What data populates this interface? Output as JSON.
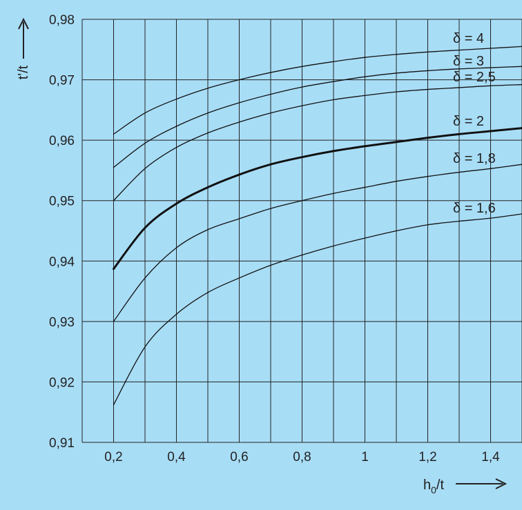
{
  "chart_data": {
    "type": "line",
    "xlabel": "h",
    "xlabel_sub": "0",
    "xlabel_suffix": "/t",
    "ylabel": "t'/t",
    "xlim": [
      0.1,
      1.5
    ],
    "ylim": [
      0.91,
      0.98
    ],
    "grid": true,
    "x_ticks": [
      0.2,
      0.4,
      0.6,
      0.8,
      1.0,
      1.2,
      1.4
    ],
    "x_tick_labels": [
      "0,2",
      "0,4",
      "0,6",
      "0,8",
      "1",
      "1,2",
      "1,4"
    ],
    "y_ticks": [
      0.91,
      0.92,
      0.93,
      0.94,
      0.95,
      0.96,
      0.97,
      0.98
    ],
    "y_tick_labels": [
      "0,91",
      "0,92",
      "0,93",
      "0,94",
      "0,95",
      "0,96",
      "0,97",
      "0,98"
    ],
    "x": [
      0.2,
      0.3,
      0.4,
      0.5,
      0.6,
      0.7,
      0.8,
      0.9,
      1.0,
      1.1,
      1.2,
      1.3,
      1.4,
      1.5
    ],
    "series": [
      {
        "name": "δ = 4",
        "bold": false,
        "values": [
          0.961,
          0.9645,
          0.9668,
          0.9686,
          0.97,
          0.9712,
          0.9722,
          0.973,
          0.9737,
          0.9742,
          0.9746,
          0.9749,
          0.9752,
          0.9755
        ]
      },
      {
        "name": "δ = 3",
        "bold": false,
        "values": [
          0.9555,
          0.9595,
          0.9623,
          0.9645,
          0.9662,
          0.9676,
          0.9688,
          0.9697,
          0.9705,
          0.9711,
          0.9715,
          0.9718,
          0.972,
          0.9722
        ]
      },
      {
        "name": "δ = 2,5",
        "bold": false,
        "values": [
          0.95,
          0.9553,
          0.9588,
          0.9612,
          0.963,
          0.9645,
          0.9657,
          0.9667,
          0.9674,
          0.968,
          0.9684,
          0.9687,
          0.969,
          0.9692
        ]
      },
      {
        "name": "δ = 2",
        "bold": true,
        "values": [
          0.9387,
          0.9455,
          0.9495,
          0.9522,
          0.9543,
          0.956,
          0.9572,
          0.9582,
          0.959,
          0.9597,
          0.9604,
          0.961,
          0.9615,
          0.962
        ]
      },
      {
        "name": "δ = 1,8",
        "bold": false,
        "values": [
          0.93,
          0.9372,
          0.9422,
          0.9452,
          0.947,
          0.9487,
          0.95,
          0.9512,
          0.9522,
          0.9532,
          0.954,
          0.9547,
          0.9553,
          0.956
        ]
      },
      {
        "name": "δ = 1,6",
        "bold": false,
        "values": [
          0.9162,
          0.9258,
          0.9312,
          0.9348,
          0.9372,
          0.9393,
          0.941,
          0.9425,
          0.9438,
          0.945,
          0.946,
          0.9466,
          0.9471,
          0.9478
        ]
      }
    ]
  }
}
